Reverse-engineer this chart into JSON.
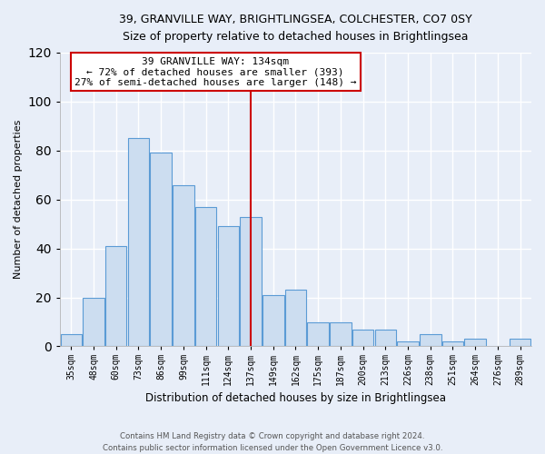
{
  "title_line1": "39, GRANVILLE WAY, BRIGHTLINGSEA, COLCHESTER, CO7 0SY",
  "title_line2": "Size of property relative to detached houses in Brightlingsea",
  "xlabel": "Distribution of detached houses by size in Brightlingsea",
  "ylabel": "Number of detached properties",
  "bar_labels": [
    "35sqm",
    "48sqm",
    "60sqm",
    "73sqm",
    "86sqm",
    "99sqm",
    "111sqm",
    "124sqm",
    "137sqm",
    "149sqm",
    "162sqm",
    "175sqm",
    "187sqm",
    "200sqm",
    "213sqm",
    "226sqm",
    "238sqm",
    "251sqm",
    "264sqm",
    "276sqm",
    "289sqm"
  ],
  "bar_values": [
    5,
    20,
    41,
    85,
    79,
    66,
    57,
    49,
    53,
    21,
    23,
    10,
    10,
    7,
    7,
    2,
    5,
    2,
    3,
    0,
    3
  ],
  "bar_color": "#ccddf0",
  "bar_edge_color": "#5b9bd5",
  "vline_x": 8,
  "vline_color": "#cc0000",
  "annotation_title": "39 GRANVILLE WAY: 134sqm",
  "annotation_line1": "← 72% of detached houses are smaller (393)",
  "annotation_line2": "27% of semi-detached houses are larger (148) →",
  "annotation_box_color": "#ffffff",
  "annotation_box_edge": "#cc0000",
  "footer_line1": "Contains HM Land Registry data © Crown copyright and database right 2024.",
  "footer_line2": "Contains public sector information licensed under the Open Government Licence v3.0.",
  "ylim": [
    0,
    120
  ],
  "yticks": [
    0,
    20,
    40,
    60,
    80,
    100,
    120
  ],
  "bg_color": "#e8eef8",
  "plot_bg_color": "#e8eef8",
  "grid_color": "#ffffff"
}
